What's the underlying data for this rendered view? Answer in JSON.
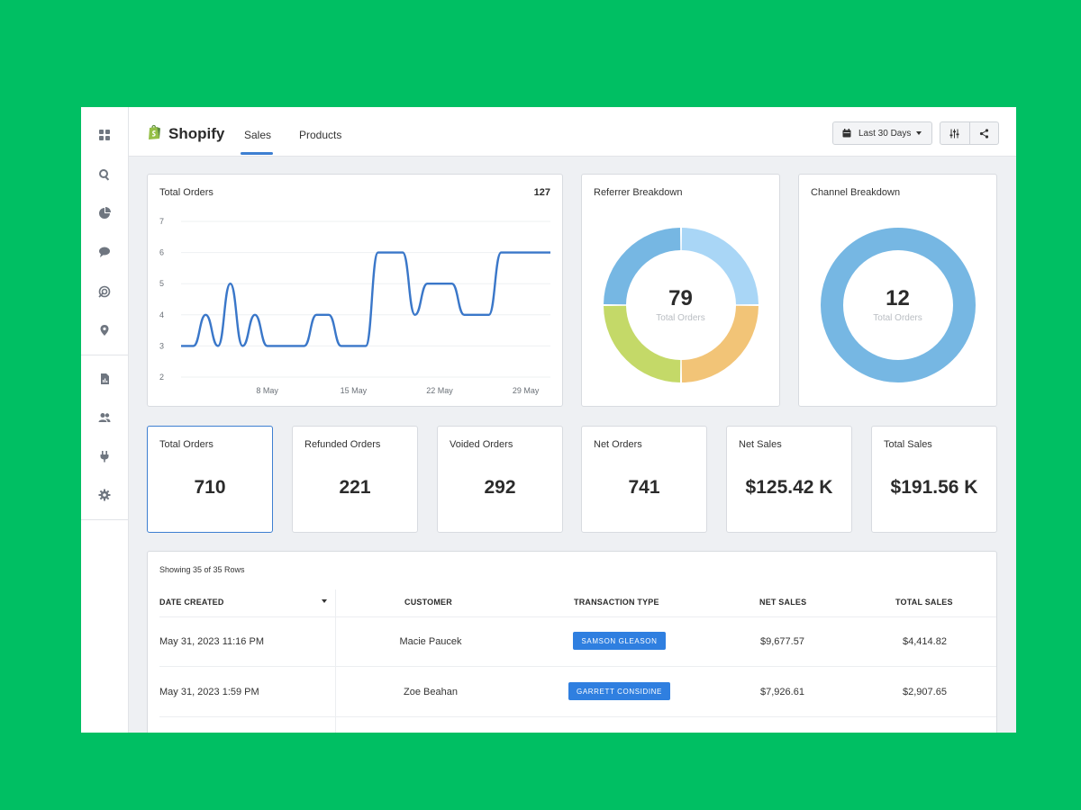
{
  "header": {
    "brand": "Shopify",
    "tabs": [
      {
        "label": "Sales",
        "active": true
      },
      {
        "label": "Products",
        "active": false
      }
    ],
    "date_range": "Last 30 Days"
  },
  "sidebar": {
    "icons": [
      "dashboard-icon",
      "search-icon",
      "pie-chart-icon",
      "chat-icon",
      "target-icon",
      "location-pin-icon",
      "report-icon",
      "users-icon",
      "plug-icon",
      "settings-icon"
    ]
  },
  "total_orders_chart": {
    "title": "Total Orders",
    "value": "127",
    "chart_data": {
      "type": "line",
      "y_ticks": [
        "7",
        "6",
        "5",
        "4",
        "3",
        "2"
      ],
      "x_ticks": [
        "8 May",
        "15 May",
        "22 May",
        "29 May"
      ],
      "ylim": [
        2,
        7
      ],
      "points": [
        [
          1,
          3
        ],
        [
          2,
          3
        ],
        [
          3,
          4
        ],
        [
          4,
          3
        ],
        [
          5,
          5
        ],
        [
          6,
          3
        ],
        [
          7,
          4
        ],
        [
          8,
          3
        ],
        [
          9,
          3
        ],
        [
          10,
          3
        ],
        [
          11,
          3
        ],
        [
          12,
          4
        ],
        [
          13,
          4
        ],
        [
          14,
          3
        ],
        [
          15,
          3
        ],
        [
          16,
          3
        ],
        [
          17,
          6
        ],
        [
          18,
          6
        ],
        [
          19,
          6
        ],
        [
          20,
          4
        ],
        [
          21,
          5
        ],
        [
          22,
          5
        ],
        [
          23,
          5
        ],
        [
          24,
          4
        ],
        [
          25,
          4
        ],
        [
          26,
          4
        ],
        [
          27,
          6
        ],
        [
          28,
          6
        ],
        [
          29,
          6
        ],
        [
          30,
          6
        ],
        [
          31,
          6
        ]
      ],
      "line_color": "#3a77c9"
    }
  },
  "referrer_breakdown": {
    "title": "Referrer Breakdown",
    "center_value": "79",
    "center_label": "Total Orders",
    "chart_data": {
      "type": "pie",
      "values": [
        25,
        25,
        25,
        25
      ],
      "colors": [
        "#a9d6f6",
        "#f2c477",
        "#c4d968",
        "#76b7e3"
      ]
    }
  },
  "channel_breakdown": {
    "title": "Channel Breakdown",
    "center_value": "12",
    "center_label": "Total Orders",
    "chart_data": {
      "type": "pie",
      "values": [
        100
      ],
      "colors": [
        "#76b7e3"
      ]
    }
  },
  "kpis": [
    {
      "label": "Total Orders",
      "value": "710"
    },
    {
      "label": "Refunded Orders",
      "value": "221"
    },
    {
      "label": "Voided Orders",
      "value": "292"
    },
    {
      "label": "Net Orders",
      "value": "741"
    },
    {
      "label": "Net Sales",
      "value": "$125.42 K"
    },
    {
      "label": "Total Sales",
      "value": "$191.56 K"
    }
  ],
  "table": {
    "showing": "Showing 35 of 35 Rows",
    "headers": [
      "DATE CREATED",
      "CUSTOMER",
      "TRANSACTION TYPE",
      "NET SALES",
      "TOTAL SALES"
    ],
    "rows": [
      {
        "date": "May 31, 2023 11:16 PM",
        "customer": "Macie Paucek",
        "type": "SAMSON GLEASON",
        "net": "$9,677.57",
        "total": "$4,414.82"
      },
      {
        "date": "May 31, 2023 1:59 PM",
        "customer": "Zoe Beahan",
        "type": "GARRETT CONSIDINE",
        "net": "$7,926.61",
        "total": "$2,907.65"
      }
    ],
    "badge_color": "#2f7fe0"
  }
}
